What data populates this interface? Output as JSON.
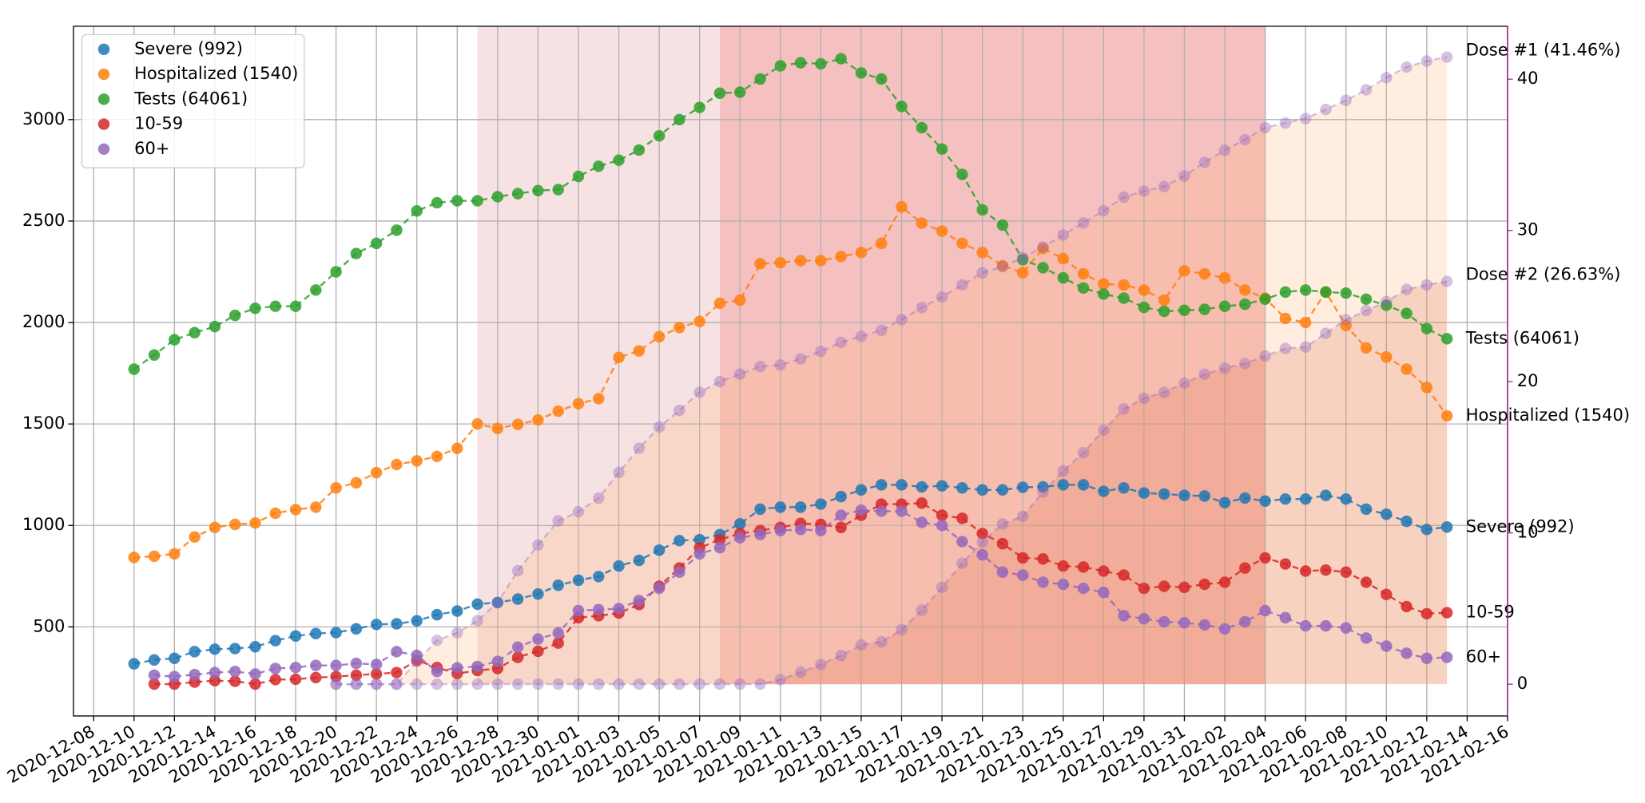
{
  "chart_data": {
    "type": "line",
    "x": [
      "2020-12-10",
      "2020-12-11",
      "2020-12-12",
      "2020-12-13",
      "2020-12-14",
      "2020-12-15",
      "2020-12-16",
      "2020-12-17",
      "2020-12-18",
      "2020-12-19",
      "2020-12-20",
      "2020-12-21",
      "2020-12-22",
      "2020-12-23",
      "2020-12-24",
      "2020-12-25",
      "2020-12-26",
      "2020-12-27",
      "2020-12-28",
      "2020-12-29",
      "2020-12-30",
      "2020-12-31",
      "2021-01-01",
      "2021-01-02",
      "2021-01-03",
      "2021-01-04",
      "2021-01-05",
      "2021-01-06",
      "2021-01-07",
      "2021-01-08",
      "2021-01-09",
      "2021-01-10",
      "2021-01-11",
      "2021-01-12",
      "2021-01-13",
      "2021-01-14",
      "2021-01-15",
      "2021-01-16",
      "2021-01-17",
      "2021-01-18",
      "2021-01-19",
      "2021-01-20",
      "2021-01-21",
      "2021-01-22",
      "2021-01-23",
      "2021-01-24",
      "2021-01-25",
      "2021-01-26",
      "2021-01-27",
      "2021-01-28",
      "2021-01-29",
      "2021-01-30",
      "2021-01-31",
      "2021-02-01",
      "2021-02-02",
      "2021-02-03",
      "2021-02-04",
      "2021-02-05",
      "2021-02-06",
      "2021-02-07",
      "2021-02-08",
      "2021-02-09",
      "2021-02-10",
      "2021-02-11",
      "2021-02-12",
      "2021-02-13"
    ],
    "series": [
      {
        "name": "Severe (992)",
        "color": "#1f77b4",
        "values": [
          318,
          337,
          345,
          378,
          390,
          393,
          402,
          432,
          455,
          467,
          472,
          490,
          512,
          515,
          530,
          560,
          578,
          612,
          620,
          637,
          662,
          705,
          730,
          748,
          800,
          828,
          878,
          925,
          930,
          955,
          1008,
          1080,
          1090,
          1090,
          1105,
          1142,
          1175,
          1200,
          1200,
          1190,
          1195,
          1185,
          1175,
          1175,
          1188,
          1190,
          1200,
          1200,
          1168,
          1185,
          1160,
          1155,
          1148,
          1145,
          1112,
          1135,
          1120,
          1130,
          1130,
          1148,
          1130,
          1080,
          1055,
          1020,
          980,
          992
        ]
      },
      {
        "name": "Hospitalized (1540)",
        "color": "#ff7f0e",
        "values": [
          842,
          848,
          860,
          943,
          990,
          1005,
          1012,
          1060,
          1078,
          1090,
          1185,
          1210,
          1260,
          1300,
          1318,
          1340,
          1380,
          1500,
          1478,
          1498,
          1520,
          1563,
          1600,
          1625,
          1828,
          1860,
          1930,
          1975,
          2005,
          2095,
          2110,
          2290,
          2295,
          2305,
          2305,
          2325,
          2345,
          2390,
          2570,
          2490,
          2450,
          2390,
          2345,
          2280,
          2245,
          2365,
          2315,
          2240,
          2190,
          2185,
          2160,
          2110,
          2255,
          2240,
          2220,
          2160,
          2120,
          2020,
          2000,
          2150,
          1985,
          1875,
          1830,
          1770,
          1680,
          1540
        ]
      },
      {
        "name": "Tests (64061)",
        "color": "#2ca02c",
        "values": [
          1770,
          1840,
          1915,
          1950,
          1980,
          2035,
          2070,
          2080,
          2080,
          2160,
          2250,
          2340,
          2390,
          2455,
          2550,
          2590,
          2600,
          2600,
          2620,
          2635,
          2650,
          2655,
          2720,
          2770,
          2800,
          2850,
          2920,
          3000,
          3060,
          3130,
          3135,
          3200,
          3265,
          3280,
          3275,
          3300,
          3230,
          3200,
          3065,
          2960,
          2855,
          2730,
          2555,
          2480,
          2310,
          2270,
          2220,
          2170,
          2140,
          2120,
          2075,
          2055,
          2060,
          2065,
          2080,
          2090,
          2115,
          2150,
          2160,
          2150,
          2145,
          2115,
          2085,
          2045,
          1970,
          1920
        ]
      },
      {
        "name": "10-59",
        "color": "#d62728",
        "values": [
          null,
          218,
          218,
          228,
          235,
          232,
          218,
          240,
          242,
          250,
          255,
          262,
          268,
          275,
          335,
          300,
          270,
          285,
          295,
          350,
          380,
          420,
          545,
          555,
          568,
          610,
          700,
          790,
          890,
          930,
          960,
          975,
          990,
          1010,
          1005,
          990,
          1050,
          1105,
          1105,
          1110,
          1050,
          1035,
          960,
          910,
          840,
          835,
          800,
          795,
          775,
          755,
          690,
          700,
          695,
          710,
          720,
          790,
          840,
          810,
          775,
          780,
          770,
          720,
          660,
          600,
          565,
          570
        ]
      },
      {
        "name": "60+",
        "color": "#9467bd",
        "values": [
          null,
          262,
          255,
          265,
          275,
          280,
          268,
          295,
          300,
          310,
          310,
          320,
          315,
          378,
          360,
          280,
          298,
          305,
          330,
          400,
          440,
          470,
          580,
          585,
          590,
          630,
          690,
          770,
          860,
          890,
          940,
          955,
          975,
          980,
          975,
          1050,
          1075,
          1070,
          1070,
          1015,
          1000,
          920,
          855,
          770,
          755,
          720,
          710,
          690,
          670,
          555,
          540,
          525,
          520,
          510,
          490,
          525,
          580,
          545,
          505,
          505,
          495,
          445,
          405,
          370,
          345,
          350
        ]
      },
      {
        "name": "Dose #1 (41.46%)",
        "color": "#9467bd",
        "opacity": 0.4,
        "axis": "y2",
        "in_legend": false,
        "label_color": "#a626a4",
        "fill_color": "#ffb070",
        "values": [
          null,
          null,
          null,
          null,
          null,
          null,
          null,
          null,
          null,
          null,
          0,
          0,
          0,
          0,
          1.5,
          2.9,
          3.4,
          4.2,
          5.4,
          7.5,
          9.2,
          10.8,
          11.4,
          12.3,
          14.0,
          15.6,
          17.0,
          18.1,
          19.3,
          20.0,
          20.5,
          21.0,
          21.1,
          21.5,
          22.0,
          22.6,
          23.0,
          23.4,
          24.1,
          24.9,
          25.6,
          26.4,
          27.2,
          27.6,
          28.2,
          28.9,
          29.7,
          30.5,
          31.3,
          32.2,
          32.6,
          32.9,
          33.6,
          34.5,
          35.3,
          36.0,
          36.8,
          37.1,
          37.4,
          38.0,
          38.6,
          39.3,
          40.1,
          40.8,
          41.2,
          41.46
        ]
      },
      {
        "name": "Dose #2 (26.63%)",
        "color": "#9467bd",
        "opacity": 0.4,
        "axis": "y2",
        "in_legend": false,
        "label_color": "#a626a4",
        "fill_color": "#e07050",
        "values": [
          null,
          null,
          null,
          null,
          null,
          null,
          null,
          null,
          null,
          null,
          0,
          0,
          0,
          0,
          0,
          0,
          0,
          0,
          0,
          0,
          0,
          0,
          0,
          0,
          0,
          0,
          0,
          0,
          0,
          0,
          0,
          0,
          0.3,
          0.8,
          1.3,
          1.9,
          2.6,
          2.8,
          3.6,
          4.9,
          6.4,
          8.0,
          9.4,
          10.6,
          11.1,
          12.7,
          14.1,
          15.3,
          16.8,
          18.2,
          18.9,
          19.3,
          19.9,
          20.5,
          20.9,
          21.2,
          21.7,
          22.2,
          22.3,
          23.2,
          24.1,
          24.7,
          25.3,
          26.1,
          26.4,
          26.63
        ]
      }
    ],
    "spans": [
      {
        "start": "2020-12-27",
        "end": "2021-01-08",
        "color": "#f6e2e2"
      },
      {
        "start": "2021-01-08",
        "end": "2021-02-04",
        "color": "#f5c0c0"
      }
    ],
    "xlim": [
      "2020-12-07",
      "2021-02-16"
    ],
    "xticks": [
      "2020-12-08",
      "2020-12-10",
      "2020-12-12",
      "2020-12-14",
      "2020-12-16",
      "2020-12-18",
      "2020-12-20",
      "2020-12-22",
      "2020-12-24",
      "2020-12-26",
      "2020-12-28",
      "2020-12-30",
      "2021-01-01",
      "2021-01-03",
      "2021-01-05",
      "2021-01-07",
      "2021-01-09",
      "2021-01-11",
      "2021-01-13",
      "2021-01-15",
      "2021-01-17",
      "2021-01-19",
      "2021-01-21",
      "2021-01-23",
      "2021-01-25",
      "2021-01-27",
      "2021-01-29",
      "2021-01-31",
      "2021-02-02",
      "2021-02-04",
      "2021-02-06",
      "2021-02-08",
      "2021-02-10",
      "2021-02-12",
      "2021-02-14",
      "2021-02-16"
    ],
    "ylim": [
      61,
      3460
    ],
    "yticks": [
      500,
      1000,
      1500,
      2000,
      2500,
      3000
    ],
    "y2lim": [
      -2.1,
      43.5
    ],
    "y2ticks": [
      0,
      10,
      20,
      30,
      40
    ],
    "y2_color": "#a626a4",
    "grid": true,
    "legend": "upper left"
  }
}
